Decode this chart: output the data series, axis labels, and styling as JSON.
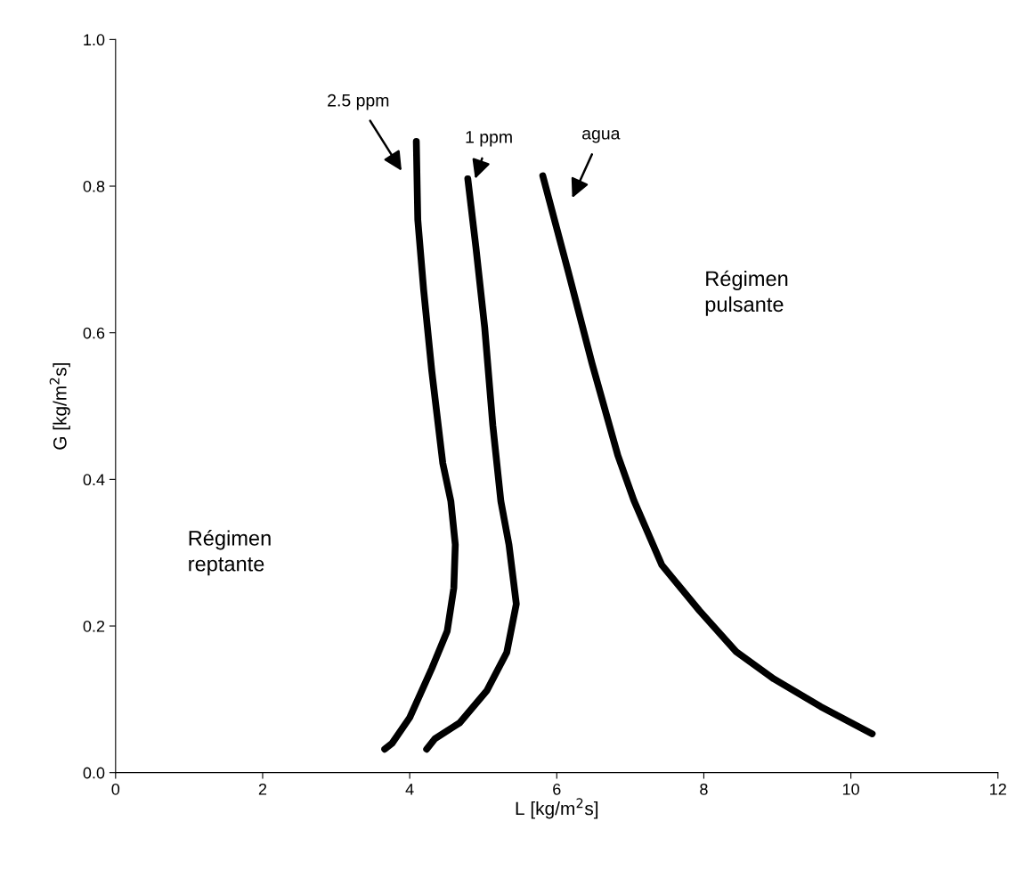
{
  "chart_data": {
    "type": "line",
    "xlabel": "L [kg/m$^{2}$s]",
    "ylabel": "G [kg/m$^{2}$s]",
    "xlim": [
      0,
      12
    ],
    "xticks": [
      0,
      2,
      4,
      6,
      8,
      10,
      12
    ],
    "ylim": [
      0,
      1
    ],
    "yticks": [
      {
        "value": 0,
        "label": "0.0"
      },
      0.2,
      0.4,
      0.6,
      0.8,
      {
        "value": 1,
        "label": "1.0"
      }
    ],
    "grid": false,
    "legend": false,
    "marker": "none",
    "line_style": "solid",
    "series": [
      {
        "name": "2.5 ppm",
        "color": "#000000",
        "x": [
          4.09,
          4.11,
          4.19,
          4.3,
          4.45,
          4.56,
          4.62,
          4.6,
          4.51,
          4.3,
          4.0,
          3.76,
          3.66
        ],
        "values": [
          0.861,
          0.754,
          0.658,
          0.548,
          0.422,
          0.37,
          0.311,
          0.252,
          0.193,
          0.142,
          0.075,
          0.04,
          0.032
        ]
      },
      {
        "name": "1 ppm",
        "color": "#000000",
        "x": [
          4.79,
          4.9,
          5.02,
          5.13,
          5.24,
          5.35,
          5.45,
          5.32,
          5.05,
          4.68,
          4.34,
          4.23
        ],
        "values": [
          0.81,
          0.717,
          0.607,
          0.474,
          0.37,
          0.311,
          0.23,
          0.164,
          0.112,
          0.068,
          0.046,
          0.032
        ]
      },
      {
        "name": "agua",
        "color": "#000000",
        "x": [
          5.81,
          6.16,
          6.48,
          6.83,
          7.05,
          7.43,
          7.94,
          8.44,
          8.95,
          9.59,
          10.29
        ],
        "values": [
          0.814,
          0.682,
          0.558,
          0.433,
          0.371,
          0.283,
          0.221,
          0.165,
          0.128,
          0.09,
          0.053
        ]
      }
    ],
    "annotations": [
      "Régimen\nreptante",
      "Régimen\npulsante"
    ]
  }
}
